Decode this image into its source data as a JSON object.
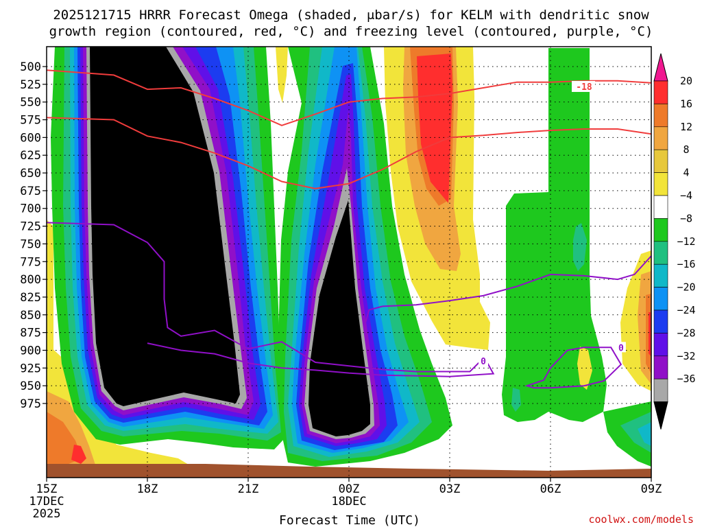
{
  "chart_data": {
    "type": "heatmap",
    "title_line1": "2025121715 HRRR Forecast Omega (shaded, μbar/s) for KELM with dendritic snow",
    "title_line2": "growth region (contoured, red, °C) and freezing level (contoured, purple, °C)",
    "xlabel": "Forecast Time (UTC)",
    "credit": "coolwx.com/models",
    "x_ticks": [
      {
        "hour": 0,
        "label": "15Z",
        "sub1": "17DEC",
        "sub2": "2025"
      },
      {
        "hour": 3,
        "label": "18Z",
        "sub1": "",
        "sub2": ""
      },
      {
        "hour": 6,
        "label": "21Z",
        "sub1": "",
        "sub2": ""
      },
      {
        "hour": 9,
        "label": "00Z",
        "sub1": "18DEC",
        "sub2": ""
      },
      {
        "hour": 12,
        "label": "03Z",
        "sub1": "",
        "sub2": ""
      },
      {
        "hour": 15,
        "label": "06Z",
        "sub1": "",
        "sub2": ""
      },
      {
        "hour": 18,
        "label": "09Z",
        "sub1": "",
        "sub2": ""
      }
    ],
    "x_range_hours": [
      0,
      18
    ],
    "y_levels": [
      500,
      525,
      550,
      575,
      600,
      625,
      650,
      675,
      700,
      725,
      750,
      775,
      800,
      825,
      850,
      875,
      900,
      925,
      950,
      975
    ],
    "colorbar": {
      "labels": [
        "20",
        "16",
        "12",
        "8",
        "4",
        "−4",
        "−8",
        "−12",
        "−16",
        "−20",
        "−24",
        "−28",
        "−32",
        "−36"
      ],
      "colors": [
        "#ff2e2e",
        "#ee7a2a",
        "#f0a640",
        "#e7c83c",
        "#f2e43a",
        "#ffffff",
        "#1ec81e",
        "#20c080",
        "#10b8c8",
        "#0e92f4",
        "#1c3cf0",
        "#6010e8",
        "#9010c8",
        "#a8a8a8"
      ],
      "top_color": "#f01890",
      "bottom_color": "#000000"
    },
    "contour_labels": {
      "dgz": "-18",
      "freezing": "0"
    },
    "dgz_top_contour": [
      [
        0,
        505
      ],
      [
        2,
        512
      ],
      [
        3,
        532
      ],
      [
        4,
        530
      ],
      [
        5,
        545
      ],
      [
        6,
        562
      ],
      [
        7,
        583
      ],
      [
        8,
        567
      ],
      [
        9,
        550
      ],
      [
        10,
        545
      ],
      [
        11,
        543
      ],
      [
        12,
        538
      ],
      [
        13,
        530
      ],
      [
        14,
        522
      ],
      [
        15,
        522
      ],
      [
        16,
        520
      ],
      [
        17,
        520
      ],
      [
        18,
        523
      ]
    ],
    "dgz_bottom_contour": [
      [
        0,
        572
      ],
      [
        2,
        575
      ],
      [
        3,
        598
      ],
      [
        4,
        607
      ],
      [
        5,
        622
      ],
      [
        6,
        640
      ],
      [
        7,
        662
      ],
      [
        8,
        672
      ],
      [
        9,
        665
      ],
      [
        10,
        645
      ],
      [
        11,
        620
      ],
      [
        12,
        600
      ],
      [
        13,
        597
      ],
      [
        14,
        593
      ],
      [
        15,
        590
      ],
      [
        16,
        588
      ],
      [
        17,
        588
      ],
      [
        18,
        595
      ]
    ],
    "freezing_level_west": [
      [
        0,
        720
      ],
      [
        2,
        723
      ],
      [
        3,
        748
      ],
      [
        3.5,
        775
      ],
      [
        3.5,
        828
      ],
      [
        3.6,
        868
      ],
      [
        4,
        880
      ],
      [
        5,
        872
      ],
      [
        6,
        898
      ],
      [
        7,
        888
      ],
      [
        8,
        917
      ],
      [
        9,
        922
      ],
      [
        10,
        927
      ],
      [
        11,
        930
      ],
      [
        12,
        930
      ],
      [
        12.6,
        930
      ],
      [
        12.9,
        916
      ],
      [
        13.1,
        916
      ],
      [
        13.3,
        933
      ],
      [
        12,
        937
      ],
      [
        10,
        935
      ],
      [
        9,
        932
      ],
      [
        8,
        928
      ],
      [
        7,
        925
      ],
      [
        6,
        918
      ],
      [
        5,
        905
      ],
      [
        4,
        900
      ],
      [
        3,
        890
      ]
    ],
    "freezing_level_mid": [
      [
        9.5,
        860
      ],
      [
        9.6,
        843
      ],
      [
        10,
        838
      ],
      [
        11,
        836
      ],
      [
        12,
        830
      ],
      [
        13,
        823
      ],
      [
        14,
        810
      ],
      [
        15,
        793
      ],
      [
        16,
        795
      ],
      [
        17,
        800
      ],
      [
        17.5,
        793
      ],
      [
        18,
        767
      ]
    ],
    "freezing_level_east": [
      [
        14.3,
        950
      ],
      [
        14.8,
        942
      ],
      [
        15,
        925
      ],
      [
        15.5,
        900
      ],
      [
        16,
        896
      ],
      [
        16.8,
        896
      ],
      [
        17.1,
        920
      ],
      [
        16.6,
        943
      ],
      [
        16,
        950
      ],
      [
        15,
        953
      ],
      [
        14.5,
        953
      ]
    ]
  }
}
